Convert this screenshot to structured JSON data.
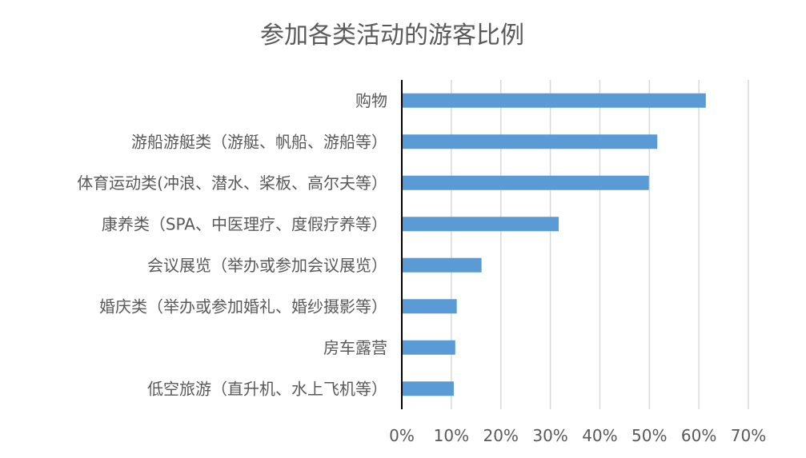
{
  "chart_data": {
    "type": "bar",
    "orientation": "horizontal",
    "title": "参加各类活动的游客比例",
    "categories": [
      "购物",
      "游船游艇类（游艇、帆船、游船等）",
      "体育运动类(冲浪、潜水、桨板、高尔夫等）",
      "康养类（SPA、中医理疗、度假疗养等）",
      "会议展览（举办或参加会议展览）",
      "婚庆类（举办或参加婚礼、婚纱摄影等）",
      "房车露营",
      "低空旅游（直升机、水上飞机等）"
    ],
    "values": [
      0.614,
      0.516,
      0.499,
      0.317,
      0.161,
      0.111,
      0.108,
      0.105
    ],
    "xlim": [
      0,
      0.7
    ],
    "xticks": [
      "0%",
      "10%",
      "20%",
      "30%",
      "40%",
      "50%",
      "60%",
      "70%"
    ],
    "xlabel": "",
    "ylabel": "",
    "grid": true,
    "legend": "none",
    "bar_color": "#5b9bd5"
  }
}
